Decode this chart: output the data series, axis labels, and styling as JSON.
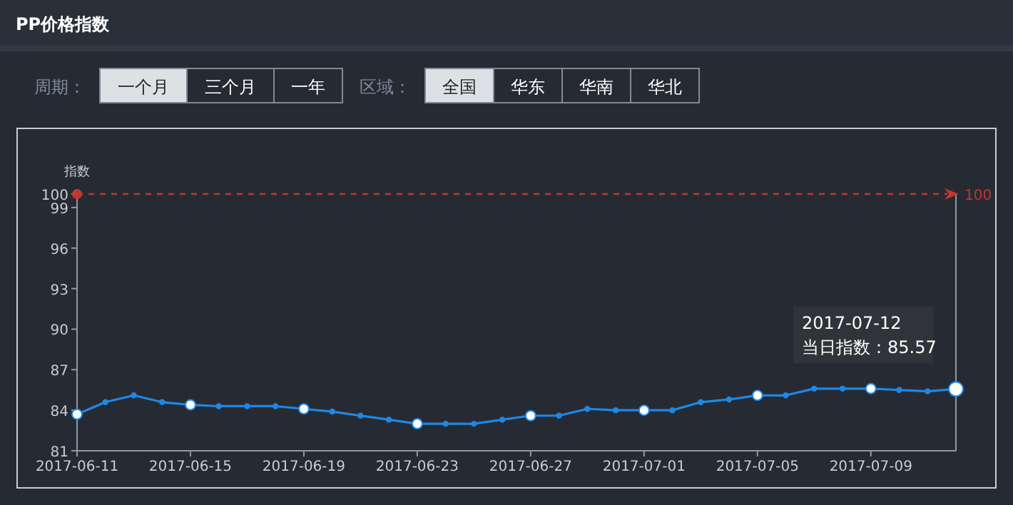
{
  "chart_data": {
    "type": "line",
    "title": "PP价格指数",
    "ylabel": "指数",
    "annotations": [
      "周期：",
      "一个月",
      "三个月",
      "一年",
      "区域：",
      "全国",
      "华东",
      "华南",
      "华北",
      {
        "text": "2017-07-12\n当日指数：85.57",
        "x": "2017-07-12",
        "y": 85.57
      }
    ],
    "x": [
      "2017-06-11",
      "2017-06-12",
      "2017-06-13",
      "2017-06-14",
      "2017-06-15",
      "2017-06-16",
      "2017-06-17",
      "2017-06-18",
      "2017-06-19",
      "2017-06-20",
      "2017-06-21",
      "2017-06-22",
      "2017-06-23",
      "2017-06-24",
      "2017-06-25",
      "2017-06-26",
      "2017-06-27",
      "2017-06-28",
      "2017-06-29",
      "2017-06-30",
      "2017-07-01",
      "2017-07-02",
      "2017-07-03",
      "2017-07-04",
      "2017-07-05",
      "2017-07-06",
      "2017-07-07",
      "2017-07-08",
      "2017-07-09",
      "2017-07-10",
      "2017-07-11",
      "2017-07-12"
    ],
    "series": [
      {
        "color": "#1e88e5",
        "values": [
          83.7,
          84.6,
          85.1,
          84.6,
          84.4,
          84.3,
          84.3,
          84.3,
          84.1,
          83.9,
          83.6,
          83.3,
          83.0,
          83.0,
          83.0,
          83.3,
          83.6,
          83.6,
          84.1,
          84.0,
          84.0,
          84.0,
          84.6,
          84.8,
          85.1,
          85.1,
          85.6,
          85.6,
          85.6,
          85.5,
          85.4,
          85.57
        ]
      }
    ],
    "xlim": [
      "2017-06-11",
      "2017-07-12"
    ],
    "xticks": [
      "2017-06-11",
      "2017-06-15",
      "2017-06-19",
      "2017-06-23",
      "2017-06-27",
      "2017-07-01",
      "2017-07-05",
      "2017-07-09"
    ],
    "ylim": [
      81,
      100
    ],
    "yticks": [
      81,
      84,
      87,
      90,
      93,
      96,
      99,
      100
    ],
    "ref_lines": [
      {
        "axis": "y",
        "value": 100,
        "label": "100",
        "color": "#c23531",
        "line_style": "dashed"
      }
    ],
    "grid": false,
    "marker": "circle",
    "line_style": "solid"
  }
}
